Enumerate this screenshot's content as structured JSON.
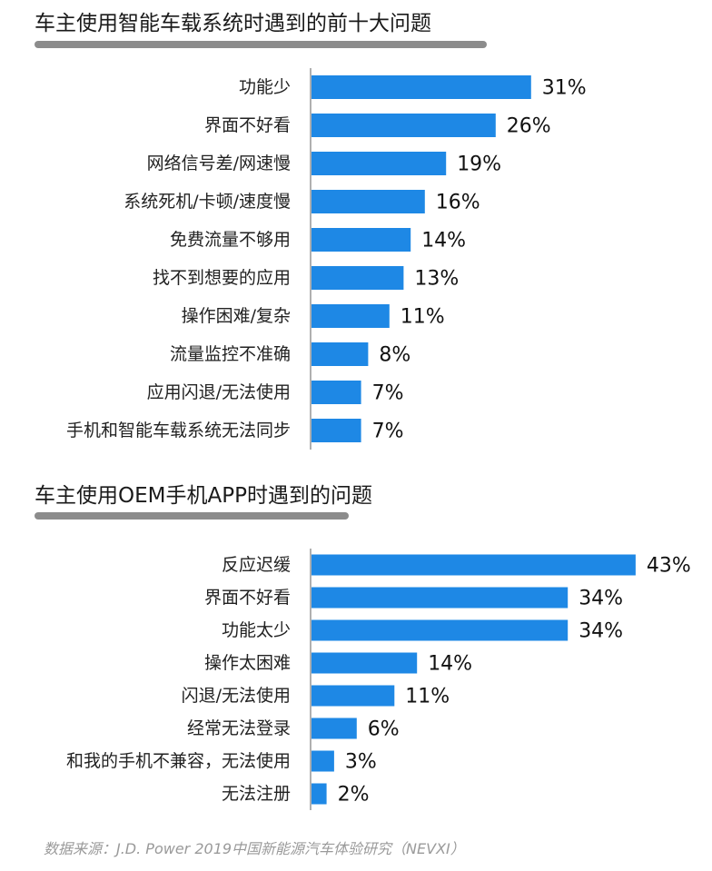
{
  "bar_color": "#1e88e5",
  "axis_color": "#b0b0b0",
  "underline_color": "#8c8c8c",
  "source": "数据来源：J.D. Power 2019中国新能源汽车体验研究（NEVXI）",
  "chart_data": [
    {
      "type": "bar",
      "orientation": "horizontal",
      "title": "车主使用智能车载系统时遇到的前十大问题",
      "categories": [
        "功能少",
        "界面不好看",
        "网络信号差/网速慢",
        "系统死机/卡顿/速度慢",
        "免费流量不够用",
        "找不到想要的应用",
        "操作困难/复杂",
        "流量监控不准确",
        "应用闪退/无法使用",
        "手机和智能车载系统无法同步"
      ],
      "values": [
        31,
        26,
        19,
        16,
        14,
        13,
        11,
        8,
        7,
        7
      ],
      "value_labels": [
        "31%",
        "26%",
        "19%",
        "16%",
        "14%",
        "13%",
        "11%",
        "8%",
        "7%",
        "7%"
      ],
      "unit": "%",
      "xlabel": "",
      "ylabel": "",
      "legend": "none",
      "grid": false
    },
    {
      "type": "bar",
      "orientation": "horizontal",
      "title": "车主使用OEM手机APP时遇到的问题",
      "categories": [
        "反应迟缓",
        "界面不好看",
        "功能太少",
        "操作太困难",
        "闪退/无法使用",
        "经常无法登录",
        "和我的手机不兼容，无法使用",
        "无法注册"
      ],
      "values": [
        43,
        34,
        34,
        14,
        11,
        6,
        3,
        2
      ],
      "value_labels": [
        "43%",
        "34%",
        "34%",
        "14%",
        "11%",
        "6%",
        "3%",
        "2%"
      ],
      "unit": "%",
      "xlabel": "",
      "ylabel": "",
      "legend": "none",
      "grid": false
    }
  ]
}
